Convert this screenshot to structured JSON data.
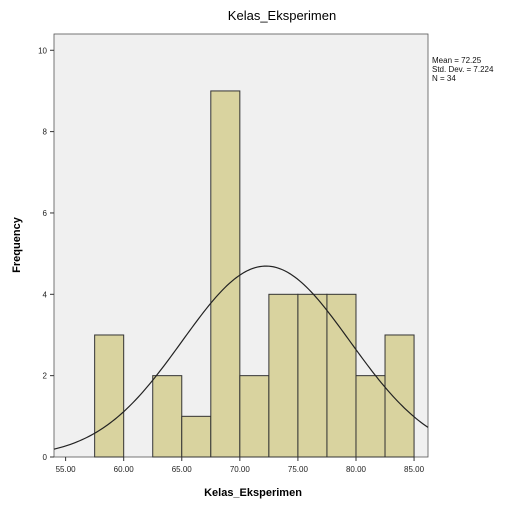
{
  "chart_data": {
    "type": "bar",
    "title": "Kelas_Eksperimen",
    "xlabel": "Kelas_Eksperimen",
    "ylabel": "Frequency",
    "xlim": [
      54.0,
      86.2
    ],
    "ylim": [
      0,
      10.4
    ],
    "x_ticks": [
      55,
      60,
      65,
      70,
      75,
      80,
      85
    ],
    "x_tick_labels": [
      "55.00",
      "60.00",
      "65.00",
      "70.00",
      "75.00",
      "80.00",
      "85.00"
    ],
    "y_ticks": [
      0,
      2,
      4,
      6,
      8,
      10
    ],
    "bins": [
      {
        "start": 57.5,
        "end": 60.0,
        "count": 3
      },
      {
        "start": 62.5,
        "end": 65.0,
        "count": 2
      },
      {
        "start": 65.0,
        "end": 67.5,
        "count": 1
      },
      {
        "start": 67.5,
        "end": 70.0,
        "count": 9
      },
      {
        "start": 70.0,
        "end": 72.5,
        "count": 2
      },
      {
        "start": 72.5,
        "end": 75.0,
        "count": 4
      },
      {
        "start": 75.0,
        "end": 77.5,
        "count": 4
      },
      {
        "start": 77.5,
        "end": 80.0,
        "count": 4
      },
      {
        "start": 80.0,
        "end": 82.5,
        "count": 2
      },
      {
        "start": 82.5,
        "end": 85.0,
        "count": 3
      }
    ],
    "normal_curve": {
      "mean": 72.25,
      "std": 7.224,
      "n": 34,
      "bin_width": 2.5
    },
    "grid": false,
    "legend_position": "top-right",
    "colors": {
      "bar_fill": "#d9d39f",
      "bar_stroke": "#333333",
      "plot_bg": "#f0f0f0",
      "curve": "#222222"
    }
  },
  "stats": {
    "mean": "Mean = 72.25",
    "std": "Std. Dev. = 7.224",
    "n": "N = 34"
  }
}
